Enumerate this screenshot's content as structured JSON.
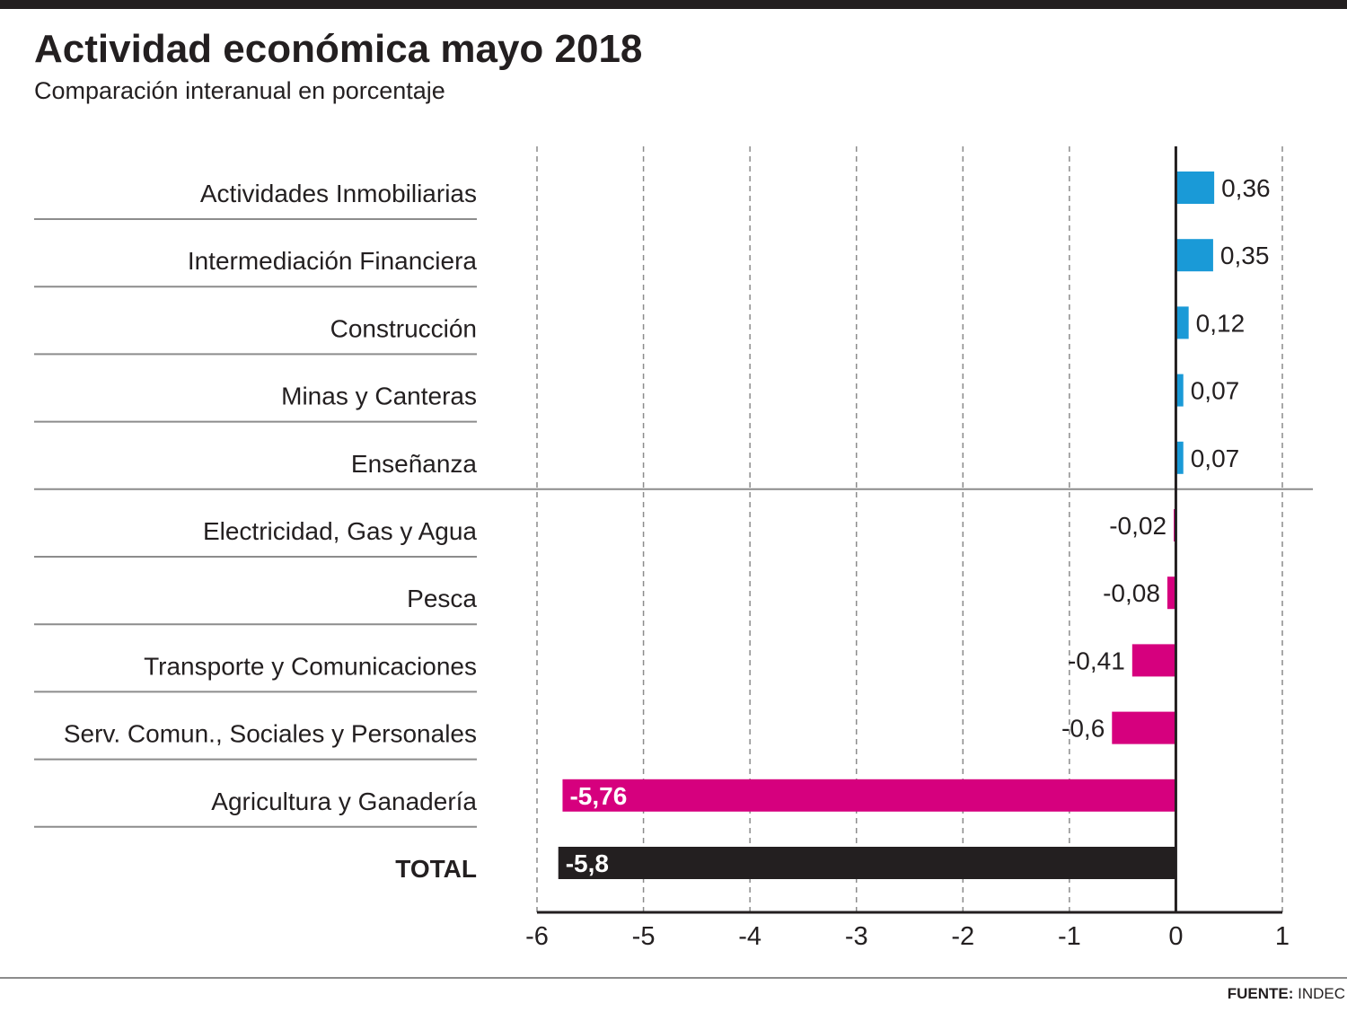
{
  "title": "Actividad económica mayo 2018",
  "subtitle": "Comparación interanual en porcentaje",
  "source": {
    "label": "FUENTE:",
    "name": "INDEC"
  },
  "colors": {
    "positive": "#1a9ad7",
    "negative": "#d6007e",
    "total": "#231f20",
    "text": "#231f20",
    "grid": "#8c8c8c"
  },
  "chart_data": {
    "type": "bar",
    "orientation": "horizontal",
    "title": "Actividad económica mayo 2018",
    "subtitle": "Comparación interanual en porcentaje",
    "categories": [
      "Actividades Inmobiliarias",
      "Intermediación Financiera",
      "Construcción",
      "Minas y Canteras",
      "Enseñanza",
      "Electricidad, Gas y Agua",
      "Pesca",
      "Transporte y Comunicaciones",
      "Serv. Comun., Sociales y Personales",
      "Agricultura y Ganadería",
      "TOTAL"
    ],
    "values": [
      0.36,
      0.35,
      0.12,
      0.07,
      0.07,
      -0.02,
      -0.08,
      -0.41,
      -0.6,
      -5.76,
      -5.8
    ],
    "value_labels": [
      "0,36",
      "0,35",
      "0,12",
      "0,07",
      "0,07",
      "-0,02",
      "-0,08",
      "-0,41",
      "-0,6",
      "-5,76",
      "-5,8"
    ],
    "xlim": [
      -6,
      1
    ],
    "xticks": [
      -6,
      -5,
      -4,
      -3,
      -2,
      -1,
      0,
      1
    ],
    "xtick_labels": [
      "-6",
      "-5",
      "-4",
      "-3",
      "-2",
      "-1",
      "0",
      "1"
    ],
    "grid": "vertical dashed",
    "legend": "none"
  }
}
